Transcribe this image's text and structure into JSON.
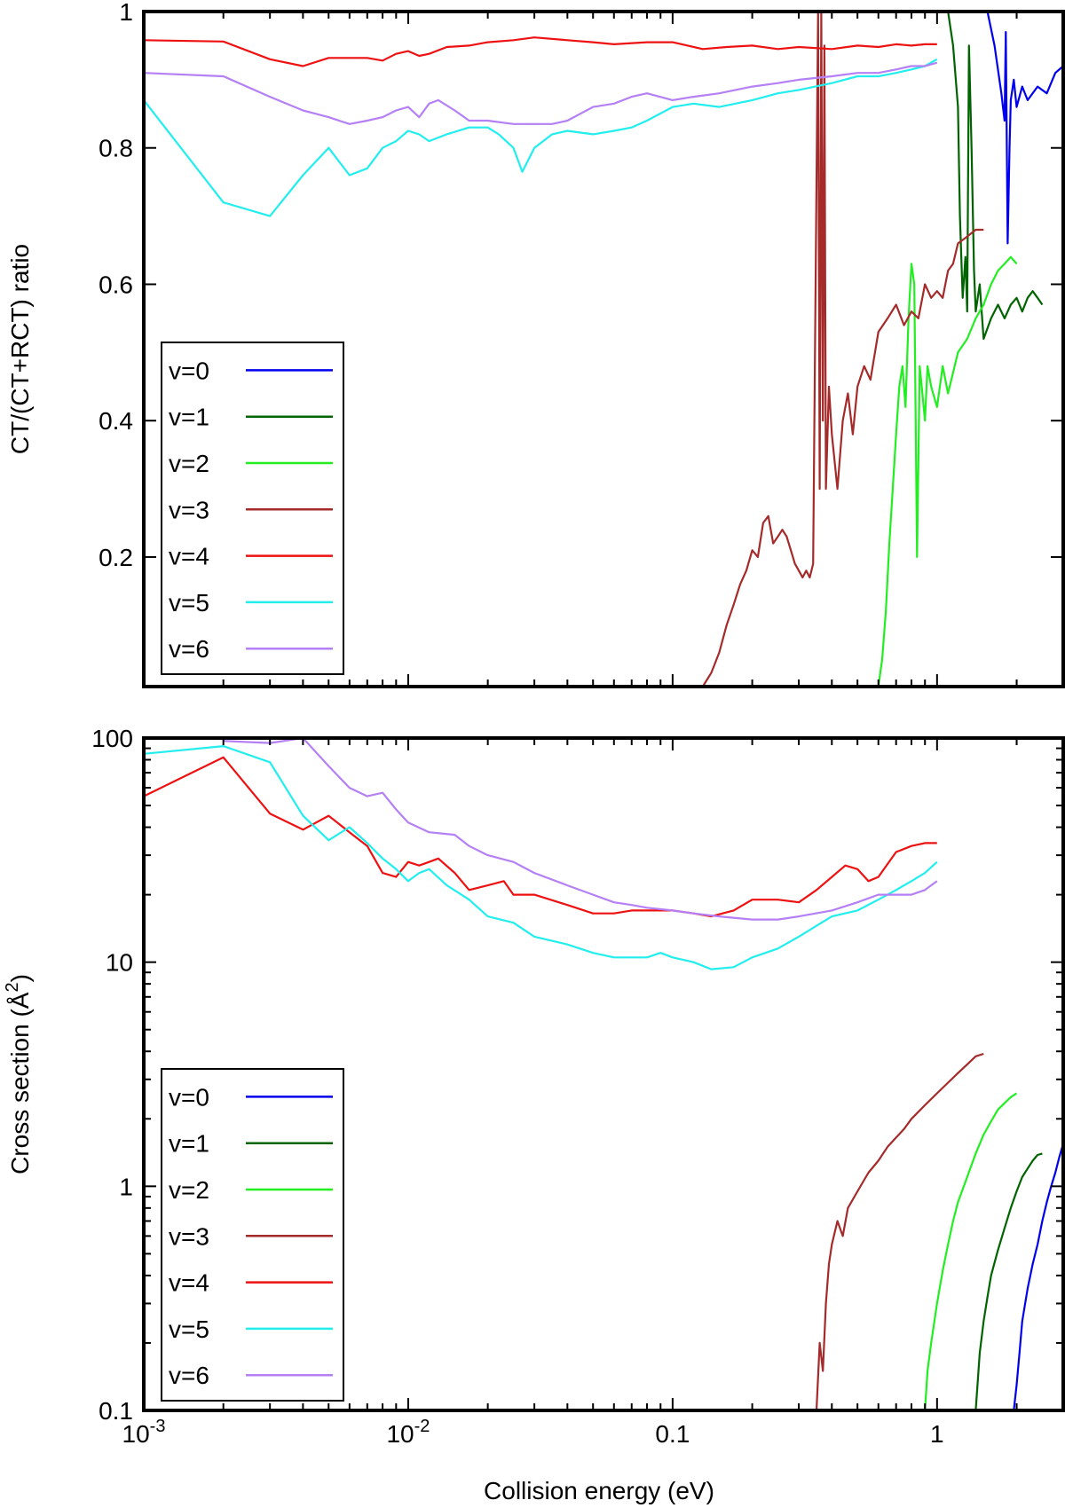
{
  "figure": {
    "xlabel": "Collision energy (eV)"
  },
  "chart_data": [
    {
      "type": "line",
      "ylabel": "CT/(CT+RCT) ratio",
      "xscale": "log",
      "yscale": "linear",
      "xlim": [
        0.001,
        3.0
      ],
      "ylim": [
        0.01,
        1.0
      ],
      "grid": false,
      "legend_position": "bottom-left",
      "x_ticks": [
        {
          "value": 0.001,
          "base": "10",
          "exp": "-3"
        },
        {
          "value": 0.01,
          "base": "10",
          "exp": "-2"
        },
        {
          "value": 0.1,
          "base": "0.1",
          "exp": ""
        },
        {
          "value": 1,
          "base": "1",
          "exp": ""
        }
      ],
      "y_ticks": [
        {
          "value": 0.2,
          "label": "0.2"
        },
        {
          "value": 0.4,
          "label": "0.4"
        },
        {
          "value": 0.6,
          "label": "0.6"
        },
        {
          "value": 0.8,
          "label": "0.8"
        },
        {
          "value": 1.0,
          "label": "1"
        }
      ],
      "series": [
        {
          "name": "v=0",
          "color": "#0000ee",
          "x": [
            1.55,
            1.65,
            1.75,
            1.8,
            1.82,
            1.85,
            1.88,
            1.9,
            1.95,
            2.0,
            2.1,
            2.2,
            2.4,
            2.6,
            2.8,
            3.0
          ],
          "y": [
            1.0,
            0.95,
            0.88,
            0.84,
            0.97,
            0.66,
            0.8,
            0.87,
            0.9,
            0.86,
            0.89,
            0.87,
            0.89,
            0.88,
            0.91,
            0.92
          ]
        },
        {
          "name": "v=1",
          "color": "#006400",
          "x": [
            1.1,
            1.15,
            1.2,
            1.22,
            1.25,
            1.28,
            1.3,
            1.32,
            1.35,
            1.38,
            1.4,
            1.45,
            1.5,
            1.6,
            1.7,
            1.8,
            1.9,
            2.0,
            2.1,
            2.2,
            2.3,
            2.4,
            2.5
          ],
          "y": [
            1.0,
            0.95,
            0.86,
            0.7,
            0.58,
            0.64,
            0.56,
            0.95,
            0.8,
            0.62,
            0.56,
            0.6,
            0.52,
            0.55,
            0.57,
            0.55,
            0.57,
            0.58,
            0.56,
            0.58,
            0.59,
            0.58,
            0.57
          ]
        },
        {
          "name": "v=2",
          "color": "#22ee22",
          "x": [
            0.6,
            0.62,
            0.64,
            0.66,
            0.68,
            0.7,
            0.72,
            0.74,
            0.76,
            0.78,
            0.8,
            0.82,
            0.84,
            0.86,
            0.88,
            0.9,
            0.92,
            0.95,
            1.0,
            1.05,
            1.1,
            1.2,
            1.3,
            1.4,
            1.5,
            1.6,
            1.7,
            1.8,
            1.9,
            2.0
          ],
          "y": [
            0.01,
            0.05,
            0.12,
            0.22,
            0.3,
            0.38,
            0.45,
            0.48,
            0.42,
            0.55,
            0.63,
            0.6,
            0.2,
            0.48,
            0.44,
            0.4,
            0.48,
            0.45,
            0.42,
            0.48,
            0.44,
            0.5,
            0.52,
            0.55,
            0.57,
            0.6,
            0.62,
            0.63,
            0.64,
            0.63
          ]
        },
        {
          "name": "v=3",
          "color": "#a52a2a",
          "x": [
            0.13,
            0.14,
            0.15,
            0.16,
            0.17,
            0.18,
            0.19,
            0.2,
            0.21,
            0.22,
            0.23,
            0.24,
            0.25,
            0.26,
            0.27,
            0.28,
            0.29,
            0.3,
            0.31,
            0.32,
            0.33,
            0.34,
            0.35,
            0.355,
            0.36,
            0.365,
            0.37,
            0.375,
            0.38,
            0.39,
            0.4,
            0.42,
            0.44,
            0.46,
            0.48,
            0.5,
            0.53,
            0.56,
            0.6,
            0.65,
            0.7,
            0.75,
            0.8,
            0.85,
            0.9,
            0.95,
            1.0,
            1.05,
            1.1,
            1.15,
            1.2,
            1.3,
            1.4,
            1.5
          ],
          "y": [
            0.01,
            0.03,
            0.06,
            0.1,
            0.13,
            0.16,
            0.18,
            0.21,
            0.2,
            0.25,
            0.26,
            0.22,
            0.23,
            0.24,
            0.23,
            0.21,
            0.19,
            0.18,
            0.17,
            0.18,
            0.17,
            0.19,
            0.75,
            1.0,
            0.3,
            1.0,
            0.4,
            0.95,
            0.3,
            0.45,
            0.38,
            0.3,
            0.4,
            0.44,
            0.38,
            0.45,
            0.48,
            0.46,
            0.53,
            0.55,
            0.57,
            0.54,
            0.56,
            0.55,
            0.6,
            0.58,
            0.59,
            0.58,
            0.62,
            0.63,
            0.66,
            0.67,
            0.68,
            0.68
          ]
        },
        {
          "name": "v=4",
          "color": "#ee1111",
          "x": [
            0.001,
            0.002,
            0.003,
            0.004,
            0.005,
            0.006,
            0.007,
            0.008,
            0.009,
            0.01,
            0.011,
            0.012,
            0.014,
            0.017,
            0.02,
            0.025,
            0.03,
            0.04,
            0.05,
            0.06,
            0.08,
            0.1,
            0.13,
            0.16,
            0.2,
            0.25,
            0.3,
            0.4,
            0.5,
            0.6,
            0.7,
            0.8,
            0.9,
            1.0
          ],
          "y": [
            0.958,
            0.956,
            0.93,
            0.92,
            0.932,
            0.932,
            0.932,
            0.928,
            0.938,
            0.942,
            0.935,
            0.938,
            0.948,
            0.95,
            0.955,
            0.958,
            0.962,
            0.958,
            0.955,
            0.952,
            0.955,
            0.955,
            0.945,
            0.948,
            0.95,
            0.945,
            0.948,
            0.945,
            0.95,
            0.948,
            0.952,
            0.95,
            0.952,
            0.952
          ]
        },
        {
          "name": "v=5",
          "color": "#22eeee",
          "x": [
            0.001,
            0.002,
            0.003,
            0.004,
            0.005,
            0.006,
            0.007,
            0.008,
            0.009,
            0.01,
            0.011,
            0.012,
            0.014,
            0.017,
            0.02,
            0.022,
            0.025,
            0.027,
            0.03,
            0.035,
            0.04,
            0.05,
            0.06,
            0.07,
            0.08,
            0.1,
            0.12,
            0.15,
            0.2,
            0.25,
            0.3,
            0.4,
            0.5,
            0.6,
            0.7,
            0.8,
            0.9,
            1.0
          ],
          "y": [
            0.87,
            0.72,
            0.7,
            0.76,
            0.8,
            0.76,
            0.77,
            0.8,
            0.81,
            0.825,
            0.82,
            0.81,
            0.82,
            0.83,
            0.83,
            0.82,
            0.8,
            0.765,
            0.8,
            0.82,
            0.825,
            0.82,
            0.825,
            0.83,
            0.84,
            0.86,
            0.865,
            0.86,
            0.87,
            0.88,
            0.885,
            0.895,
            0.905,
            0.905,
            0.91,
            0.915,
            0.92,
            0.93
          ]
        },
        {
          "name": "v=6",
          "color": "#b580f5",
          "x": [
            0.001,
            0.002,
            0.003,
            0.004,
            0.005,
            0.006,
            0.007,
            0.008,
            0.009,
            0.01,
            0.011,
            0.012,
            0.013,
            0.015,
            0.017,
            0.02,
            0.025,
            0.03,
            0.035,
            0.04,
            0.05,
            0.06,
            0.07,
            0.08,
            0.1,
            0.12,
            0.15,
            0.2,
            0.25,
            0.3,
            0.4,
            0.5,
            0.6,
            0.7,
            0.8,
            0.9,
            1.0
          ],
          "y": [
            0.91,
            0.905,
            0.875,
            0.855,
            0.845,
            0.835,
            0.84,
            0.845,
            0.855,
            0.86,
            0.845,
            0.865,
            0.87,
            0.855,
            0.84,
            0.84,
            0.835,
            0.835,
            0.835,
            0.84,
            0.86,
            0.865,
            0.875,
            0.88,
            0.87,
            0.875,
            0.88,
            0.89,
            0.895,
            0.9,
            0.905,
            0.91,
            0.91,
            0.915,
            0.92,
            0.92,
            0.925
          ]
        }
      ]
    },
    {
      "type": "line",
      "ylabel": "Cross section (Å²)",
      "xscale": "log",
      "yscale": "log",
      "xlim": [
        0.001,
        3.0
      ],
      "ylim": [
        0.1,
        100
      ],
      "grid": false,
      "legend_position": "bottom-left",
      "x_ticks": [
        {
          "value": 0.001,
          "base": "10",
          "exp": "-3"
        },
        {
          "value": 0.01,
          "base": "10",
          "exp": "-2"
        },
        {
          "value": 0.1,
          "base": "0.1",
          "exp": ""
        },
        {
          "value": 1,
          "base": "1",
          "exp": ""
        }
      ],
      "y_ticks": [
        {
          "value": 0.1,
          "label": "0.1"
        },
        {
          "value": 1,
          "label": "1"
        },
        {
          "value": 10,
          "label": "10"
        },
        {
          "value": 100,
          "label": "100"
        }
      ],
      "series": [
        {
          "name": "v=0",
          "color": "#0000ee",
          "x": [
            1.95,
            2.0,
            2.05,
            2.1,
            2.2,
            2.3,
            2.4,
            2.5,
            2.6,
            2.7,
            2.8,
            2.9,
            3.0
          ],
          "y": [
            0.1,
            0.13,
            0.18,
            0.25,
            0.35,
            0.45,
            0.55,
            0.7,
            0.85,
            1.0,
            1.15,
            1.35,
            1.55
          ]
        },
        {
          "name": "v=1",
          "color": "#006400",
          "x": [
            1.4,
            1.45,
            1.5,
            1.55,
            1.6,
            1.7,
            1.8,
            1.9,
            2.0,
            2.1,
            2.2,
            2.3,
            2.4,
            2.5
          ],
          "y": [
            0.1,
            0.18,
            0.25,
            0.32,
            0.4,
            0.52,
            0.65,
            0.8,
            0.95,
            1.1,
            1.2,
            1.3,
            1.38,
            1.4
          ]
        },
        {
          "name": "v=2",
          "color": "#22ee22",
          "x": [
            0.9,
            0.92,
            0.95,
            1.0,
            1.05,
            1.1,
            1.15,
            1.2,
            1.3,
            1.4,
            1.5,
            1.6,
            1.7,
            1.8,
            1.9,
            2.0
          ],
          "y": [
            0.1,
            0.15,
            0.2,
            0.3,
            0.42,
            0.55,
            0.7,
            0.85,
            1.1,
            1.4,
            1.7,
            1.95,
            2.2,
            2.35,
            2.5,
            2.6
          ]
        },
        {
          "name": "v=3",
          "color": "#a52a2a",
          "x": [
            0.35,
            0.36,
            0.37,
            0.38,
            0.39,
            0.4,
            0.42,
            0.44,
            0.46,
            0.5,
            0.55,
            0.6,
            0.65,
            0.7,
            0.75,
            0.8,
            0.9,
            1.0,
            1.1,
            1.2,
            1.3,
            1.4,
            1.5
          ],
          "y": [
            0.1,
            0.2,
            0.15,
            0.3,
            0.45,
            0.55,
            0.7,
            0.6,
            0.8,
            0.95,
            1.15,
            1.3,
            1.5,
            1.65,
            1.8,
            2.0,
            2.3,
            2.6,
            2.9,
            3.2,
            3.5,
            3.8,
            3.9
          ]
        },
        {
          "name": "v=4",
          "color": "#ee1111",
          "x": [
            0.001,
            0.002,
            0.003,
            0.004,
            0.005,
            0.006,
            0.007,
            0.008,
            0.009,
            0.01,
            0.011,
            0.012,
            0.013,
            0.015,
            0.017,
            0.02,
            0.023,
            0.025,
            0.03,
            0.04,
            0.05,
            0.06,
            0.07,
            0.08,
            0.1,
            0.12,
            0.14,
            0.17,
            0.2,
            0.25,
            0.3,
            0.35,
            0.4,
            0.45,
            0.5,
            0.55,
            0.6,
            0.7,
            0.8,
            0.9,
            1.0
          ],
          "y": [
            55,
            82,
            46,
            39,
            45,
            38,
            33,
            25,
            24,
            28,
            27,
            28,
            29,
            25,
            21,
            22,
            23,
            20,
            20,
            18,
            16.5,
            16.5,
            17,
            17,
            17,
            16.5,
            16,
            17,
            19,
            19,
            18.5,
            21,
            24,
            27,
            26,
            23,
            24,
            31,
            33,
            34,
            34
          ]
        },
        {
          "name": "v=5",
          "color": "#22eeee",
          "x": [
            0.001,
            0.002,
            0.003,
            0.004,
            0.005,
            0.006,
            0.007,
            0.008,
            0.009,
            0.01,
            0.011,
            0.012,
            0.014,
            0.017,
            0.02,
            0.025,
            0.03,
            0.04,
            0.05,
            0.06,
            0.07,
            0.08,
            0.09,
            0.1,
            0.12,
            0.14,
            0.17,
            0.2,
            0.25,
            0.3,
            0.4,
            0.5,
            0.6,
            0.7,
            0.8,
            0.9,
            1.0
          ],
          "y": [
            85,
            92,
            78,
            45,
            35,
            40,
            34,
            29,
            26,
            23,
            25,
            26,
            22,
            19,
            16,
            15,
            13,
            12,
            11,
            10.5,
            10.5,
            10.5,
            11,
            10.5,
            10,
            9.3,
            9.5,
            10.5,
            11.5,
            13,
            16,
            17,
            19,
            21,
            23,
            25,
            28
          ]
        },
        {
          "name": "v=6",
          "color": "#b580f5",
          "x": [
            0.002,
            0.003,
            0.004,
            0.005,
            0.006,
            0.007,
            0.008,
            0.009,
            0.01,
            0.012,
            0.015,
            0.017,
            0.02,
            0.025,
            0.03,
            0.04,
            0.05,
            0.06,
            0.07,
            0.08,
            0.1,
            0.12,
            0.15,
            0.2,
            0.25,
            0.3,
            0.4,
            0.5,
            0.6,
            0.7,
            0.8,
            0.9,
            1.0
          ],
          "y": [
            97,
            95,
            100,
            75,
            60,
            55,
            57,
            48,
            42,
            38,
            37,
            33,
            30,
            28,
            25,
            22,
            20,
            18.5,
            18,
            17.5,
            17,
            16.5,
            16,
            15.5,
            15.5,
            16,
            17,
            18.5,
            20,
            20,
            20,
            21,
            23
          ]
        }
      ]
    }
  ]
}
